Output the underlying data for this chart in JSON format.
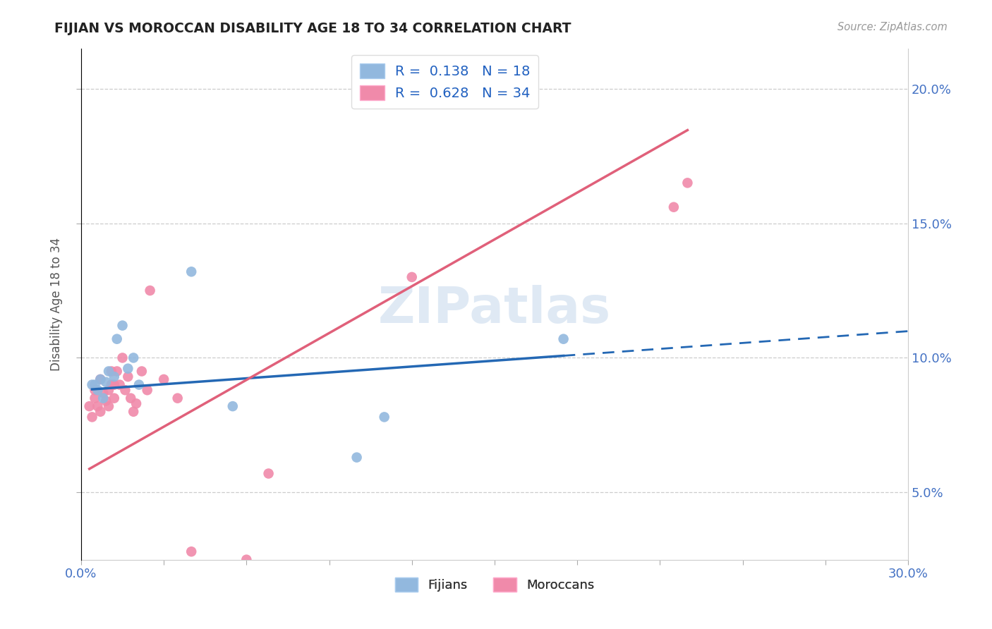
{
  "title": "FIJIAN VS MOROCCAN DISABILITY AGE 18 TO 34 CORRELATION CHART",
  "source": "Source: ZipAtlas.com",
  "ylabel": "Disability Age 18 to 34",
  "xlim": [
    0.0,
    0.3
  ],
  "ylim": [
    0.025,
    0.215
  ],
  "ytick_positions": [
    0.05,
    0.1,
    0.15,
    0.2
  ],
  "ytick_labels": [
    "5.0%",
    "10.0%",
    "15.0%",
    "20.0%"
  ],
  "fijian_color": "#92b8de",
  "moroccan_color": "#f08aaa",
  "fijian_R": 0.138,
  "fijian_N": 18,
  "moroccan_R": 0.628,
  "moroccan_N": 34,
  "watermark": "ZIPatlas",
  "fijian_scatter_x": [
    0.004,
    0.005,
    0.006,
    0.007,
    0.008,
    0.009,
    0.01,
    0.012,
    0.013,
    0.015,
    0.017,
    0.019,
    0.021,
    0.04,
    0.055,
    0.1,
    0.11,
    0.175
  ],
  "fijian_scatter_y": [
    0.09,
    0.09,
    0.088,
    0.092,
    0.085,
    0.091,
    0.095,
    0.093,
    0.107,
    0.112,
    0.096,
    0.1,
    0.09,
    0.132,
    0.082,
    0.063,
    0.078,
    0.107
  ],
  "moroccan_scatter_x": [
    0.003,
    0.004,
    0.005,
    0.005,
    0.006,
    0.007,
    0.007,
    0.008,
    0.009,
    0.01,
    0.01,
    0.011,
    0.011,
    0.012,
    0.012,
    0.013,
    0.014,
    0.015,
    0.016,
    0.017,
    0.018,
    0.019,
    0.02,
    0.022,
    0.024,
    0.025,
    0.03,
    0.035,
    0.04,
    0.06,
    0.068,
    0.12,
    0.215,
    0.22
  ],
  "moroccan_scatter_y": [
    0.082,
    0.078,
    0.085,
    0.088,
    0.082,
    0.08,
    0.092,
    0.087,
    0.084,
    0.082,
    0.088,
    0.09,
    0.095,
    0.085,
    0.09,
    0.095,
    0.09,
    0.1,
    0.088,
    0.093,
    0.085,
    0.08,
    0.083,
    0.095,
    0.088,
    0.125,
    0.092,
    0.085,
    0.028,
    0.025,
    0.057,
    0.13,
    0.156,
    0.165
  ]
}
